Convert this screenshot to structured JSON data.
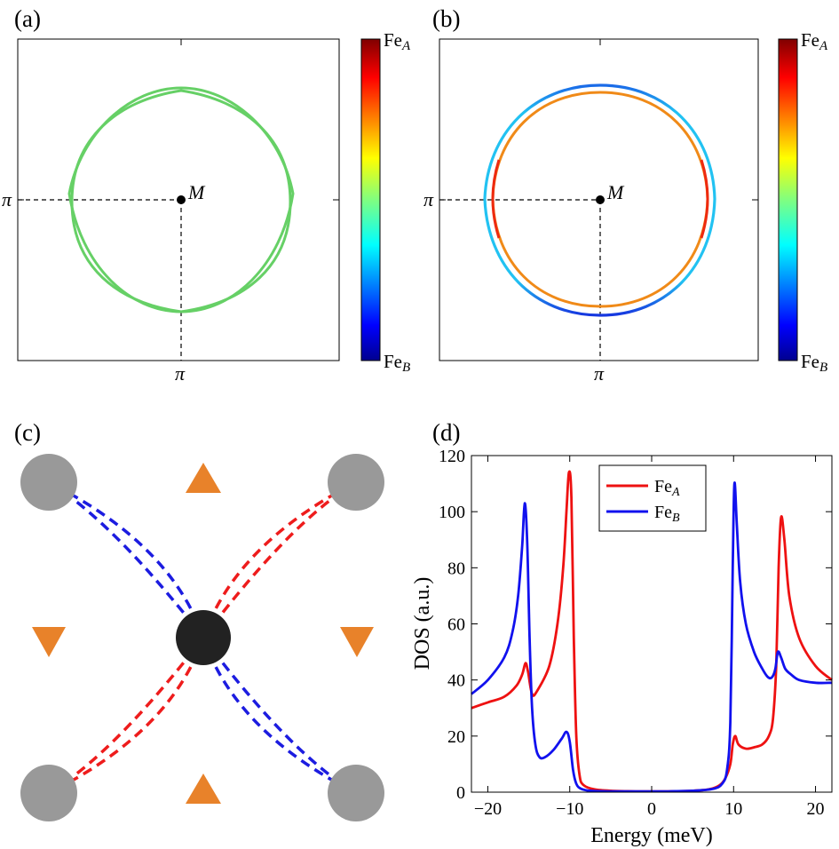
{
  "panels": {
    "a": {
      "label": "(a)",
      "point": "M",
      "x_tick": "π",
      "y_tick": "π",
      "colorbar": {
        "top": "Fe",
        "top_sub": "A",
        "bottom": "Fe",
        "bottom_sub": "B"
      },
      "contour_color": "#66d066"
    },
    "b": {
      "label": "(b)",
      "point": "M",
      "x_tick": "π",
      "y_tick": "π",
      "colorbar": {
        "top": "Fe",
        "top_sub": "A",
        "bottom": "Fe",
        "bottom_sub": "B"
      },
      "inner_color": "#f08a18",
      "outer_color": "#22c2f2",
      "outer_edge_color": "#1636e0"
    },
    "c": {
      "label": "(c)",
      "colors": {
        "large_atom": "#222222",
        "small_atom": "#999999",
        "triangle": "#e8822a",
        "bond_a": "#ee1c1c",
        "bond_b": "#1c1ce0"
      }
    },
    "d": {
      "label": "(d)"
    }
  },
  "chart_data": {
    "type": "line",
    "title": "",
    "xlabel": "Energy (meV)",
    "ylabel": "DOS (a.u.)",
    "xlim": [
      -22,
      22
    ],
    "ylim": [
      0,
      120
    ],
    "xticks": [
      -20,
      -10,
      0,
      10,
      20
    ],
    "yticks": [
      0,
      20,
      40,
      60,
      80,
      100,
      120
    ],
    "legend": {
      "placement": "top-center",
      "entries": [
        "Fe_A",
        "Fe_B"
      ]
    },
    "series": [
      {
        "name": "Fe_A",
        "label_main": "Fe",
        "label_sub": "A",
        "color": "#ee1111",
        "x": [
          -22,
          -20,
          -18,
          -16.5,
          -15.8,
          -15.4,
          -15.1,
          -14.6,
          -14,
          -12.5,
          -11.5,
          -10.8,
          -10.4,
          -10.1,
          -9.8,
          -9.5,
          -9.2,
          -8.8,
          -8.3,
          -7,
          -5,
          -2,
          0,
          2,
          5,
          7,
          8.3,
          9,
          9.6,
          9.9,
          10.2,
          10.6,
          11.5,
          12.5,
          13.5,
          14.3,
          14.8,
          15.2,
          15.5,
          15.8,
          16.2,
          16.8,
          18,
          20,
          22
        ],
        "y": [
          30,
          32,
          34,
          38,
          42,
          46,
          43,
          35,
          36,
          45,
          60,
          80,
          100,
          114,
          105,
          55,
          20,
          6,
          2.5,
          1,
          0.5,
          0.3,
          0.3,
          0.3,
          0.5,
          1,
          2.5,
          5,
          10,
          17,
          20,
          17,
          15.5,
          16,
          17,
          20,
          26,
          45,
          80,
          98,
          90,
          70,
          55,
          45,
          40
        ]
      },
      {
        "name": "Fe_B",
        "label_main": "Fe",
        "label_sub": "B",
        "color": "#1111ee",
        "x": [
          -22,
          -20,
          -18,
          -17,
          -16.3,
          -15.8,
          -15.5,
          -15.2,
          -14.9,
          -14.6,
          -14.2,
          -13.7,
          -13,
          -12,
          -11,
          -10.4,
          -10,
          -9.6,
          -9.2,
          -8.6,
          -7.5,
          -5,
          -2,
          0,
          2,
          5,
          7.5,
          8.6,
          9.2,
          9.6,
          9.9,
          10.1,
          10.4,
          10.8,
          11.5,
          12.5,
          13.5,
          14.2,
          14.7,
          15.1,
          15.4,
          15.8,
          16.3,
          17,
          18,
          20,
          22
        ],
        "y": [
          35,
          40,
          48,
          57,
          70,
          88,
          103,
          90,
          55,
          30,
          17,
          12.5,
          12.5,
          15,
          19,
          21.5,
          18,
          8,
          3,
          1.2,
          0.5,
          0.3,
          0.3,
          0.3,
          0.3,
          0.5,
          1.2,
          3,
          8,
          25,
          80,
          110,
          95,
          75,
          60,
          50,
          44,
          41,
          41,
          44,
          50,
          48,
          44,
          42,
          40,
          39,
          39
        ]
      }
    ]
  }
}
